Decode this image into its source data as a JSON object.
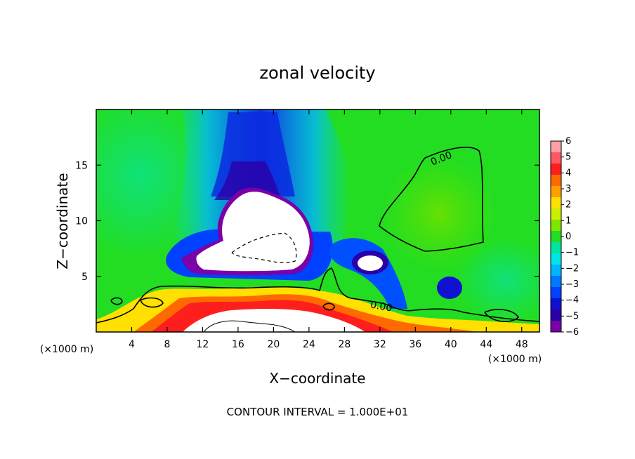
{
  "chart_data": {
    "type": "heatmap",
    "title": "zonal velocity",
    "xlabel": "X−coordinate",
    "ylabel": "Z−coordinate",
    "x_unit_note": "(×1000 m)",
    "x_unit_note_right": "(×1000 m)",
    "xlim": [
      0,
      50
    ],
    "ylim": [
      0,
      20
    ],
    "x_ticks": [
      4,
      8,
      12,
      16,
      20,
      24,
      28,
      32,
      36,
      40,
      44,
      48
    ],
    "x_tick_labels": [
      "4",
      "8",
      "12",
      "16",
      "20",
      "24",
      "28",
      "32",
      "36",
      "40",
      "44",
      "48"
    ],
    "y_ticks": [
      5,
      10,
      15
    ],
    "y_tick_labels": [
      "5",
      "10",
      "15"
    ],
    "colorbar": {
      "levels": [
        6,
        5,
        4,
        3,
        2,
        1,
        0,
        -1,
        -2,
        -3,
        -4,
        -5,
        -6
      ],
      "labels": [
        "6",
        "5",
        "4",
        "3",
        "2",
        "1",
        "0",
        "−1",
        "−2",
        "−3",
        "−4",
        "−5",
        "−6"
      ],
      "colors": [
        "#ff9ea6",
        "#ff5a5f",
        "#ff1e1e",
        "#ff6a00",
        "#ffa000",
        "#ffe000",
        "#c8f000",
        "#7ee600",
        "#22dd22",
        "#00e6a0",
        "#00e6e6",
        "#00b4ff",
        "#0078ff",
        "#0040ff",
        "#1010d0",
        "#2a00a8",
        "#7a00a8"
      ]
    },
    "contour_labels": [
      "0.00",
      "0.00"
    ],
    "footer": "CONTOUR INTERVAL = 1.000E+01",
    "grid": false,
    "legend_position": "right"
  }
}
